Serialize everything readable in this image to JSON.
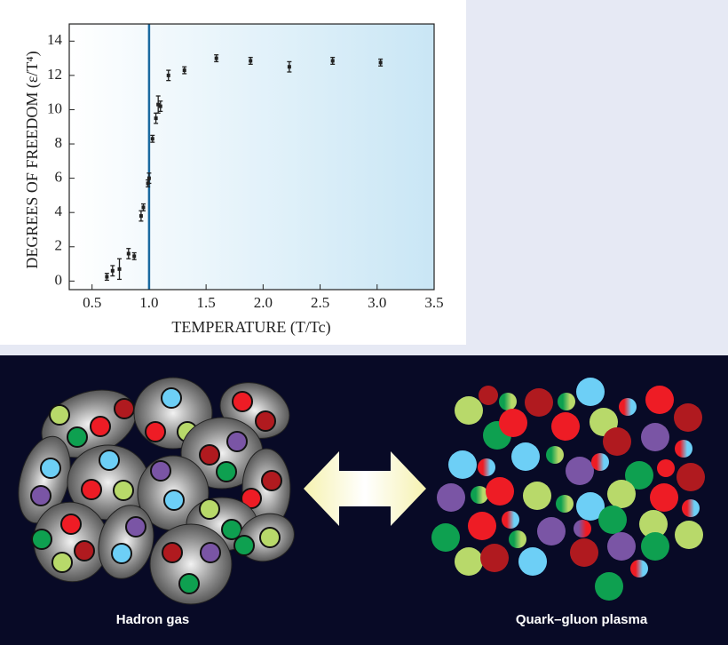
{
  "chart_data": {
    "type": "scatter",
    "xlabel": "TEMPERATURE (T/Tc)",
    "ylabel": "DEGREES OF FREEDOM (ε/T⁴)",
    "xlim": [
      0.3,
      3.5
    ],
    "ylim": [
      -0.5,
      15
    ],
    "xticks": [
      0.5,
      {
        "value": 1,
        "label": "1.0"
      },
      1.5,
      {
        "value": 2,
        "label": "2.0"
      },
      2.5,
      {
        "value": 3,
        "label": "3.0"
      },
      3.5
    ],
    "yticks": [
      0,
      2,
      4,
      6,
      8,
      10,
      12,
      14
    ],
    "reference_line": {
      "x": 1,
      "color": "#1a6aa0"
    },
    "series": [
      {
        "color": "#222222",
        "x": [
          0.63,
          0.68,
          0.74,
          0.82,
          0.87,
          0.93,
          0.95,
          0.99,
          1.0,
          1.03,
          1.06,
          1.08,
          1.1,
          1.17,
          1.31,
          1.59,
          1.89,
          2.23,
          2.61,
          3.03
        ],
        "values": [
          0.25,
          0.6,
          0.7,
          1.6,
          1.45,
          3.8,
          4.3,
          5.7,
          6.0,
          8.3,
          9.5,
          10.3,
          10.2,
          12.0,
          12.3,
          13.0,
          12.85,
          12.5,
          12.85,
          12.75
        ],
        "errors": [
          0.2,
          0.3,
          0.6,
          0.3,
          0.2,
          0.3,
          0.2,
          0.2,
          0.3,
          0.2,
          0.3,
          0.5,
          0.3,
          0.3,
          0.2,
          0.2,
          0.2,
          0.3,
          0.2,
          0.2
        ]
      }
    ]
  },
  "illustration": {
    "left_label": "Hadron gas",
    "right_label": "Quark–gluon plasma"
  }
}
